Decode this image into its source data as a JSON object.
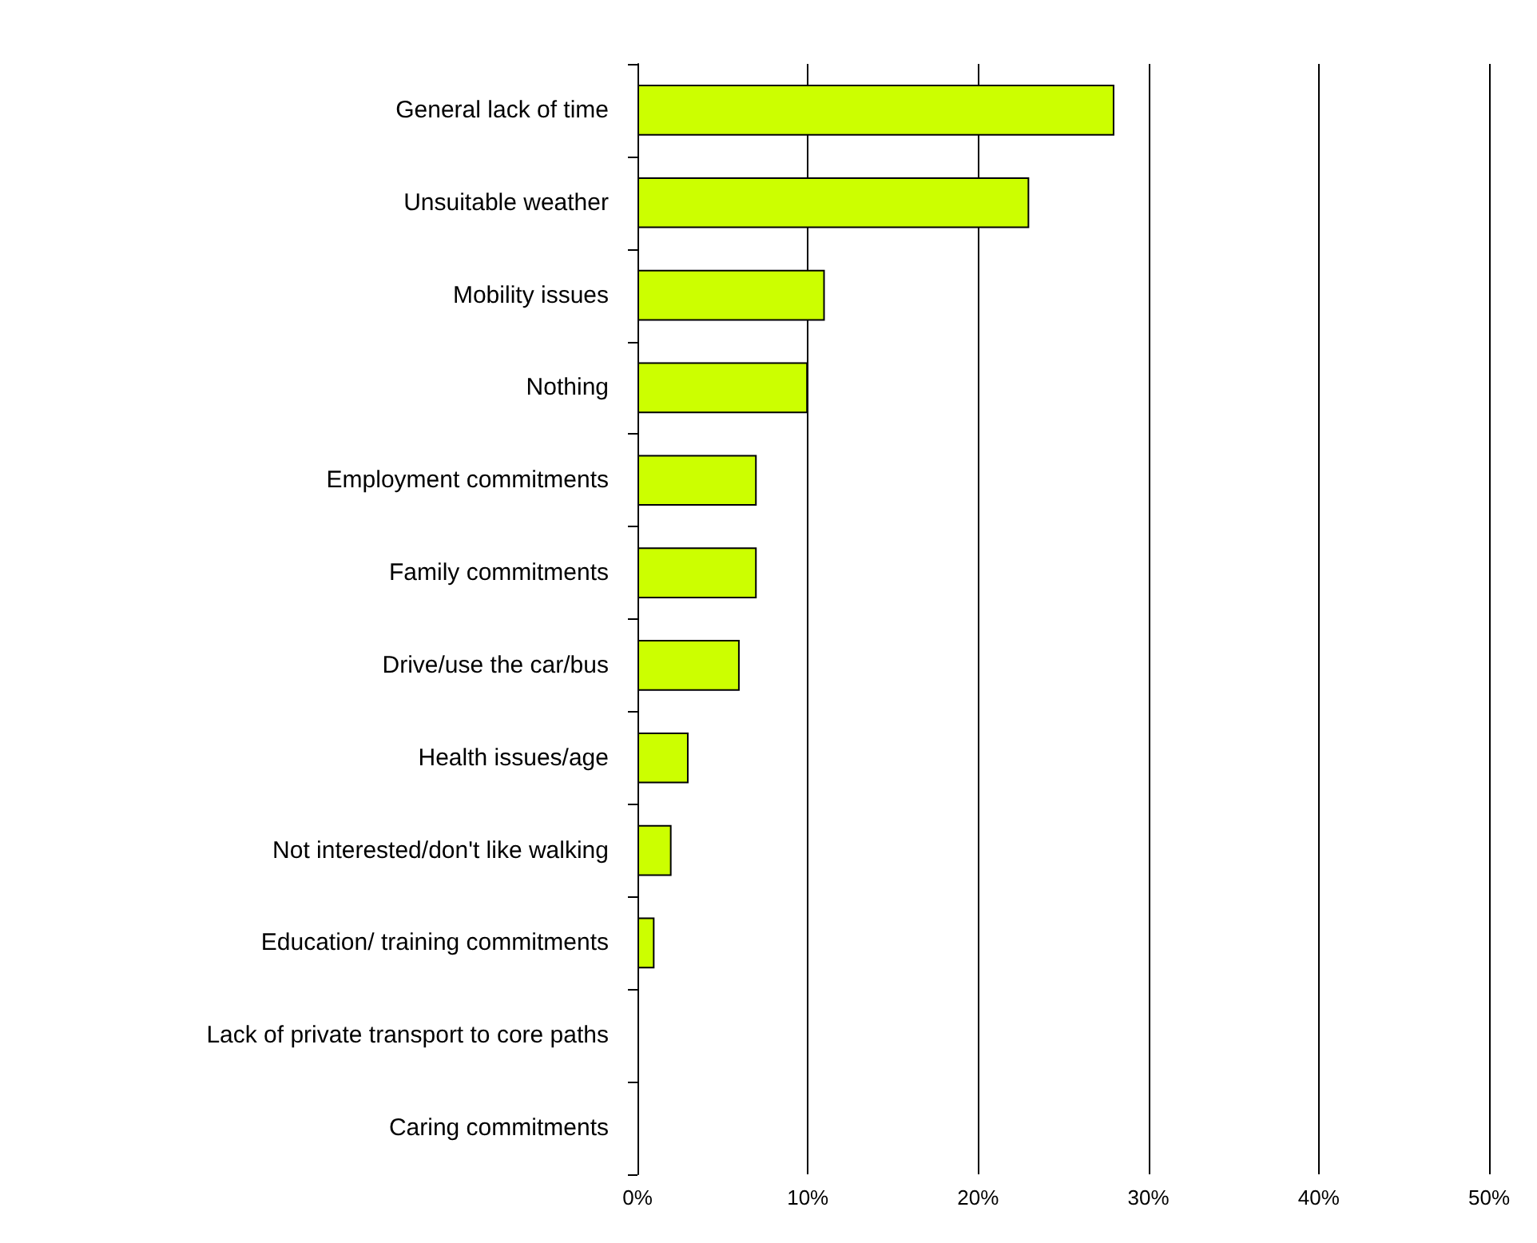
{
  "chart_data": {
    "type": "bar",
    "orientation": "horizontal",
    "categories": [
      "General lack of time",
      "Unsuitable weather",
      "Mobility issues",
      "Nothing",
      "Employment commitments",
      "Family commitments",
      "Drive/use the car/bus",
      "Health issues/age",
      "Not interested/don't like walking",
      "Education/ training commitments",
      "Lack of private transport to core paths",
      "Caring commitments"
    ],
    "values": [
      28,
      23,
      11,
      10,
      7,
      7,
      6,
      3,
      2,
      1,
      0,
      0
    ],
    "color": "#ccff00",
    "xlim": [
      0,
      50
    ],
    "xticks": [
      {
        "value": 0,
        "label": "0%"
      },
      {
        "value": 10,
        "label": "10%"
      },
      {
        "value": 20,
        "label": "20%"
      },
      {
        "value": 30,
        "label": "30%"
      },
      {
        "value": 40,
        "label": "40%"
      },
      {
        "value": 50,
        "label": "50%"
      }
    ],
    "grid": "x"
  }
}
